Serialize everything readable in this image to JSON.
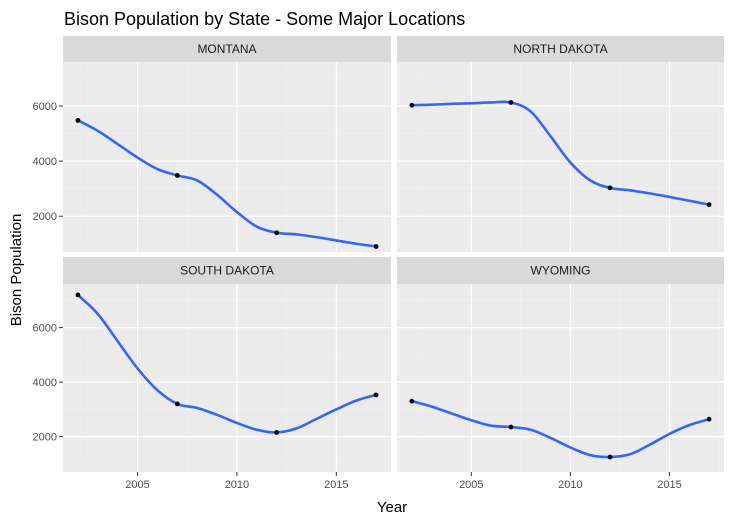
{
  "chart_data": {
    "type": "line",
    "title": "Bison Population by State - Some Major Locations",
    "xlabel": "Year",
    "ylabel": "Bison Population",
    "xlim": [
      2001.25,
      2017.75
    ],
    "ylim": [
      700,
      7600
    ],
    "x_ticks": [
      2005,
      2010,
      2015
    ],
    "y_ticks": [
      2000,
      4000,
      6000
    ],
    "grid": true,
    "line_color": "#3366ff",
    "point_color": "#000000",
    "panel_background": "#ebebeb",
    "strip_background": "#d9d9d9",
    "panels": [
      {
        "name": "MONTANA",
        "x": [
          2002,
          2007,
          2012,
          2017
        ],
        "y": [
          5480,
          3480,
          1400,
          900
        ],
        "smooth": [
          [
            2002,
            5480
          ],
          [
            2003,
            5100
          ],
          [
            2004,
            4620
          ],
          [
            2005,
            4130
          ],
          [
            2006,
            3710
          ],
          [
            2007,
            3480
          ],
          [
            2008,
            3300
          ],
          [
            2009,
            2780
          ],
          [
            2010,
            2150
          ],
          [
            2011,
            1620
          ],
          [
            2012,
            1400
          ],
          [
            2013,
            1340
          ],
          [
            2014,
            1240
          ],
          [
            2015,
            1120
          ],
          [
            2016,
            1000
          ],
          [
            2017,
            900
          ]
        ]
      },
      {
        "name": "NORTH DAKOTA",
        "x": [
          2002,
          2007,
          2012,
          2017
        ],
        "y": [
          6030,
          6130,
          3030,
          2420
        ],
        "smooth": [
          [
            2002,
            6030
          ],
          [
            2003,
            6050
          ],
          [
            2004,
            6080
          ],
          [
            2005,
            6100
          ],
          [
            2006,
            6130
          ],
          [
            2007,
            6130
          ],
          [
            2008,
            5800
          ],
          [
            2009,
            4900
          ],
          [
            2010,
            3950
          ],
          [
            2011,
            3300
          ],
          [
            2012,
            3030
          ],
          [
            2013,
            2940
          ],
          [
            2014,
            2830
          ],
          [
            2015,
            2700
          ],
          [
            2016,
            2560
          ],
          [
            2017,
            2420
          ]
        ]
      },
      {
        "name": "SOUTH DAKOTA",
        "x": [
          2002,
          2007,
          2012,
          2017
        ],
        "y": [
          7200,
          3200,
          2150,
          3530
        ],
        "smooth": [
          [
            2002,
            7200
          ],
          [
            2003,
            6500
          ],
          [
            2004,
            5500
          ],
          [
            2005,
            4500
          ],
          [
            2006,
            3700
          ],
          [
            2007,
            3200
          ],
          [
            2008,
            3050
          ],
          [
            2009,
            2800
          ],
          [
            2010,
            2500
          ],
          [
            2011,
            2250
          ],
          [
            2012,
            2150
          ],
          [
            2013,
            2300
          ],
          [
            2014,
            2650
          ],
          [
            2015,
            3000
          ],
          [
            2016,
            3320
          ],
          [
            2017,
            3530
          ]
        ]
      },
      {
        "name": "WYOMING",
        "x": [
          2002,
          2007,
          2012,
          2017
        ],
        "y": [
          3300,
          2350,
          1250,
          2640
        ],
        "smooth": [
          [
            2002,
            3300
          ],
          [
            2003,
            3100
          ],
          [
            2004,
            2850
          ],
          [
            2005,
            2600
          ],
          [
            2006,
            2400
          ],
          [
            2007,
            2350
          ],
          [
            2008,
            2250
          ],
          [
            2009,
            1950
          ],
          [
            2010,
            1600
          ],
          [
            2011,
            1320
          ],
          [
            2012,
            1250
          ],
          [
            2013,
            1350
          ],
          [
            2014,
            1700
          ],
          [
            2015,
            2100
          ],
          [
            2016,
            2420
          ],
          [
            2017,
            2640
          ]
        ]
      }
    ]
  }
}
